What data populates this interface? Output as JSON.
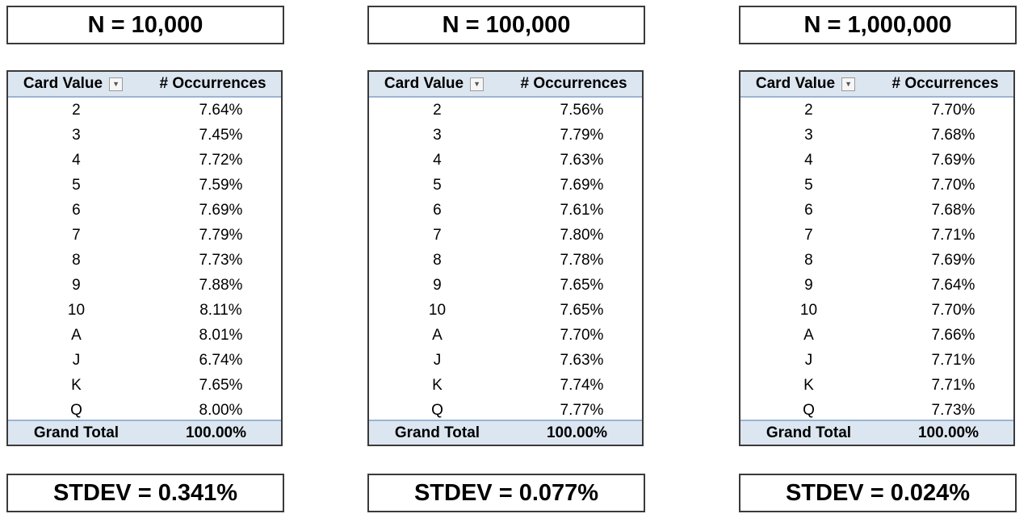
{
  "panels": [
    {
      "title": "N = 10,000",
      "header": {
        "card_value": "Card Value",
        "occurrences": "# Occurrences"
      },
      "rows": [
        {
          "card": "2",
          "pct": "7.64%"
        },
        {
          "card": "3",
          "pct": "7.45%"
        },
        {
          "card": "4",
          "pct": "7.72%"
        },
        {
          "card": "5",
          "pct": "7.59%"
        },
        {
          "card": "6",
          "pct": "7.69%"
        },
        {
          "card": "7",
          "pct": "7.79%"
        },
        {
          "card": "8",
          "pct": "7.73%"
        },
        {
          "card": "9",
          "pct": "7.88%"
        },
        {
          "card": "10",
          "pct": "8.11%"
        },
        {
          "card": "A",
          "pct": "8.01%"
        },
        {
          "card": "J",
          "pct": "6.74%"
        },
        {
          "card": "K",
          "pct": "7.65%"
        },
        {
          "card": "Q",
          "pct": "8.00%"
        }
      ],
      "total": {
        "label": "Grand Total",
        "value": "100.00%"
      },
      "stdev": "STDEV = 0.341%"
    },
    {
      "title": "N = 100,000",
      "header": {
        "card_value": "Card Value",
        "occurrences": "# Occurrences"
      },
      "rows": [
        {
          "card": "2",
          "pct": "7.56%"
        },
        {
          "card": "3",
          "pct": "7.79%"
        },
        {
          "card": "4",
          "pct": "7.63%"
        },
        {
          "card": "5",
          "pct": "7.69%"
        },
        {
          "card": "6",
          "pct": "7.61%"
        },
        {
          "card": "7",
          "pct": "7.80%"
        },
        {
          "card": "8",
          "pct": "7.78%"
        },
        {
          "card": "9",
          "pct": "7.65%"
        },
        {
          "card": "10",
          "pct": "7.65%"
        },
        {
          "card": "A",
          "pct": "7.70%"
        },
        {
          "card": "J",
          "pct": "7.63%"
        },
        {
          "card": "K",
          "pct": "7.74%"
        },
        {
          "card": "Q",
          "pct": "7.77%"
        }
      ],
      "total": {
        "label": "Grand Total",
        "value": "100.00%"
      },
      "stdev": "STDEV = 0.077%"
    },
    {
      "title": "N = 1,000,000",
      "header": {
        "card_value": "Card Value",
        "occurrences": "# Occurrences"
      },
      "rows": [
        {
          "card": "2",
          "pct": "7.70%"
        },
        {
          "card": "3",
          "pct": "7.68%"
        },
        {
          "card": "4",
          "pct": "7.69%"
        },
        {
          "card": "5",
          "pct": "7.70%"
        },
        {
          "card": "6",
          "pct": "7.68%"
        },
        {
          "card": "7",
          "pct": "7.71%"
        },
        {
          "card": "8",
          "pct": "7.69%"
        },
        {
          "card": "9",
          "pct": "7.64%"
        },
        {
          "card": "10",
          "pct": "7.70%"
        },
        {
          "card": "A",
          "pct": "7.66%"
        },
        {
          "card": "J",
          "pct": "7.71%"
        },
        {
          "card": "K",
          "pct": "7.71%"
        },
        {
          "card": "Q",
          "pct": "7.73%"
        }
      ],
      "total": {
        "label": "Grand Total",
        "value": "100.00%"
      },
      "stdev": "STDEV = 0.024%"
    }
  ],
  "icons": {
    "filter": "filter-dropdown-icon"
  },
  "colors": {
    "header_fill": "#dce6f1",
    "border": "#3a3a3a"
  }
}
